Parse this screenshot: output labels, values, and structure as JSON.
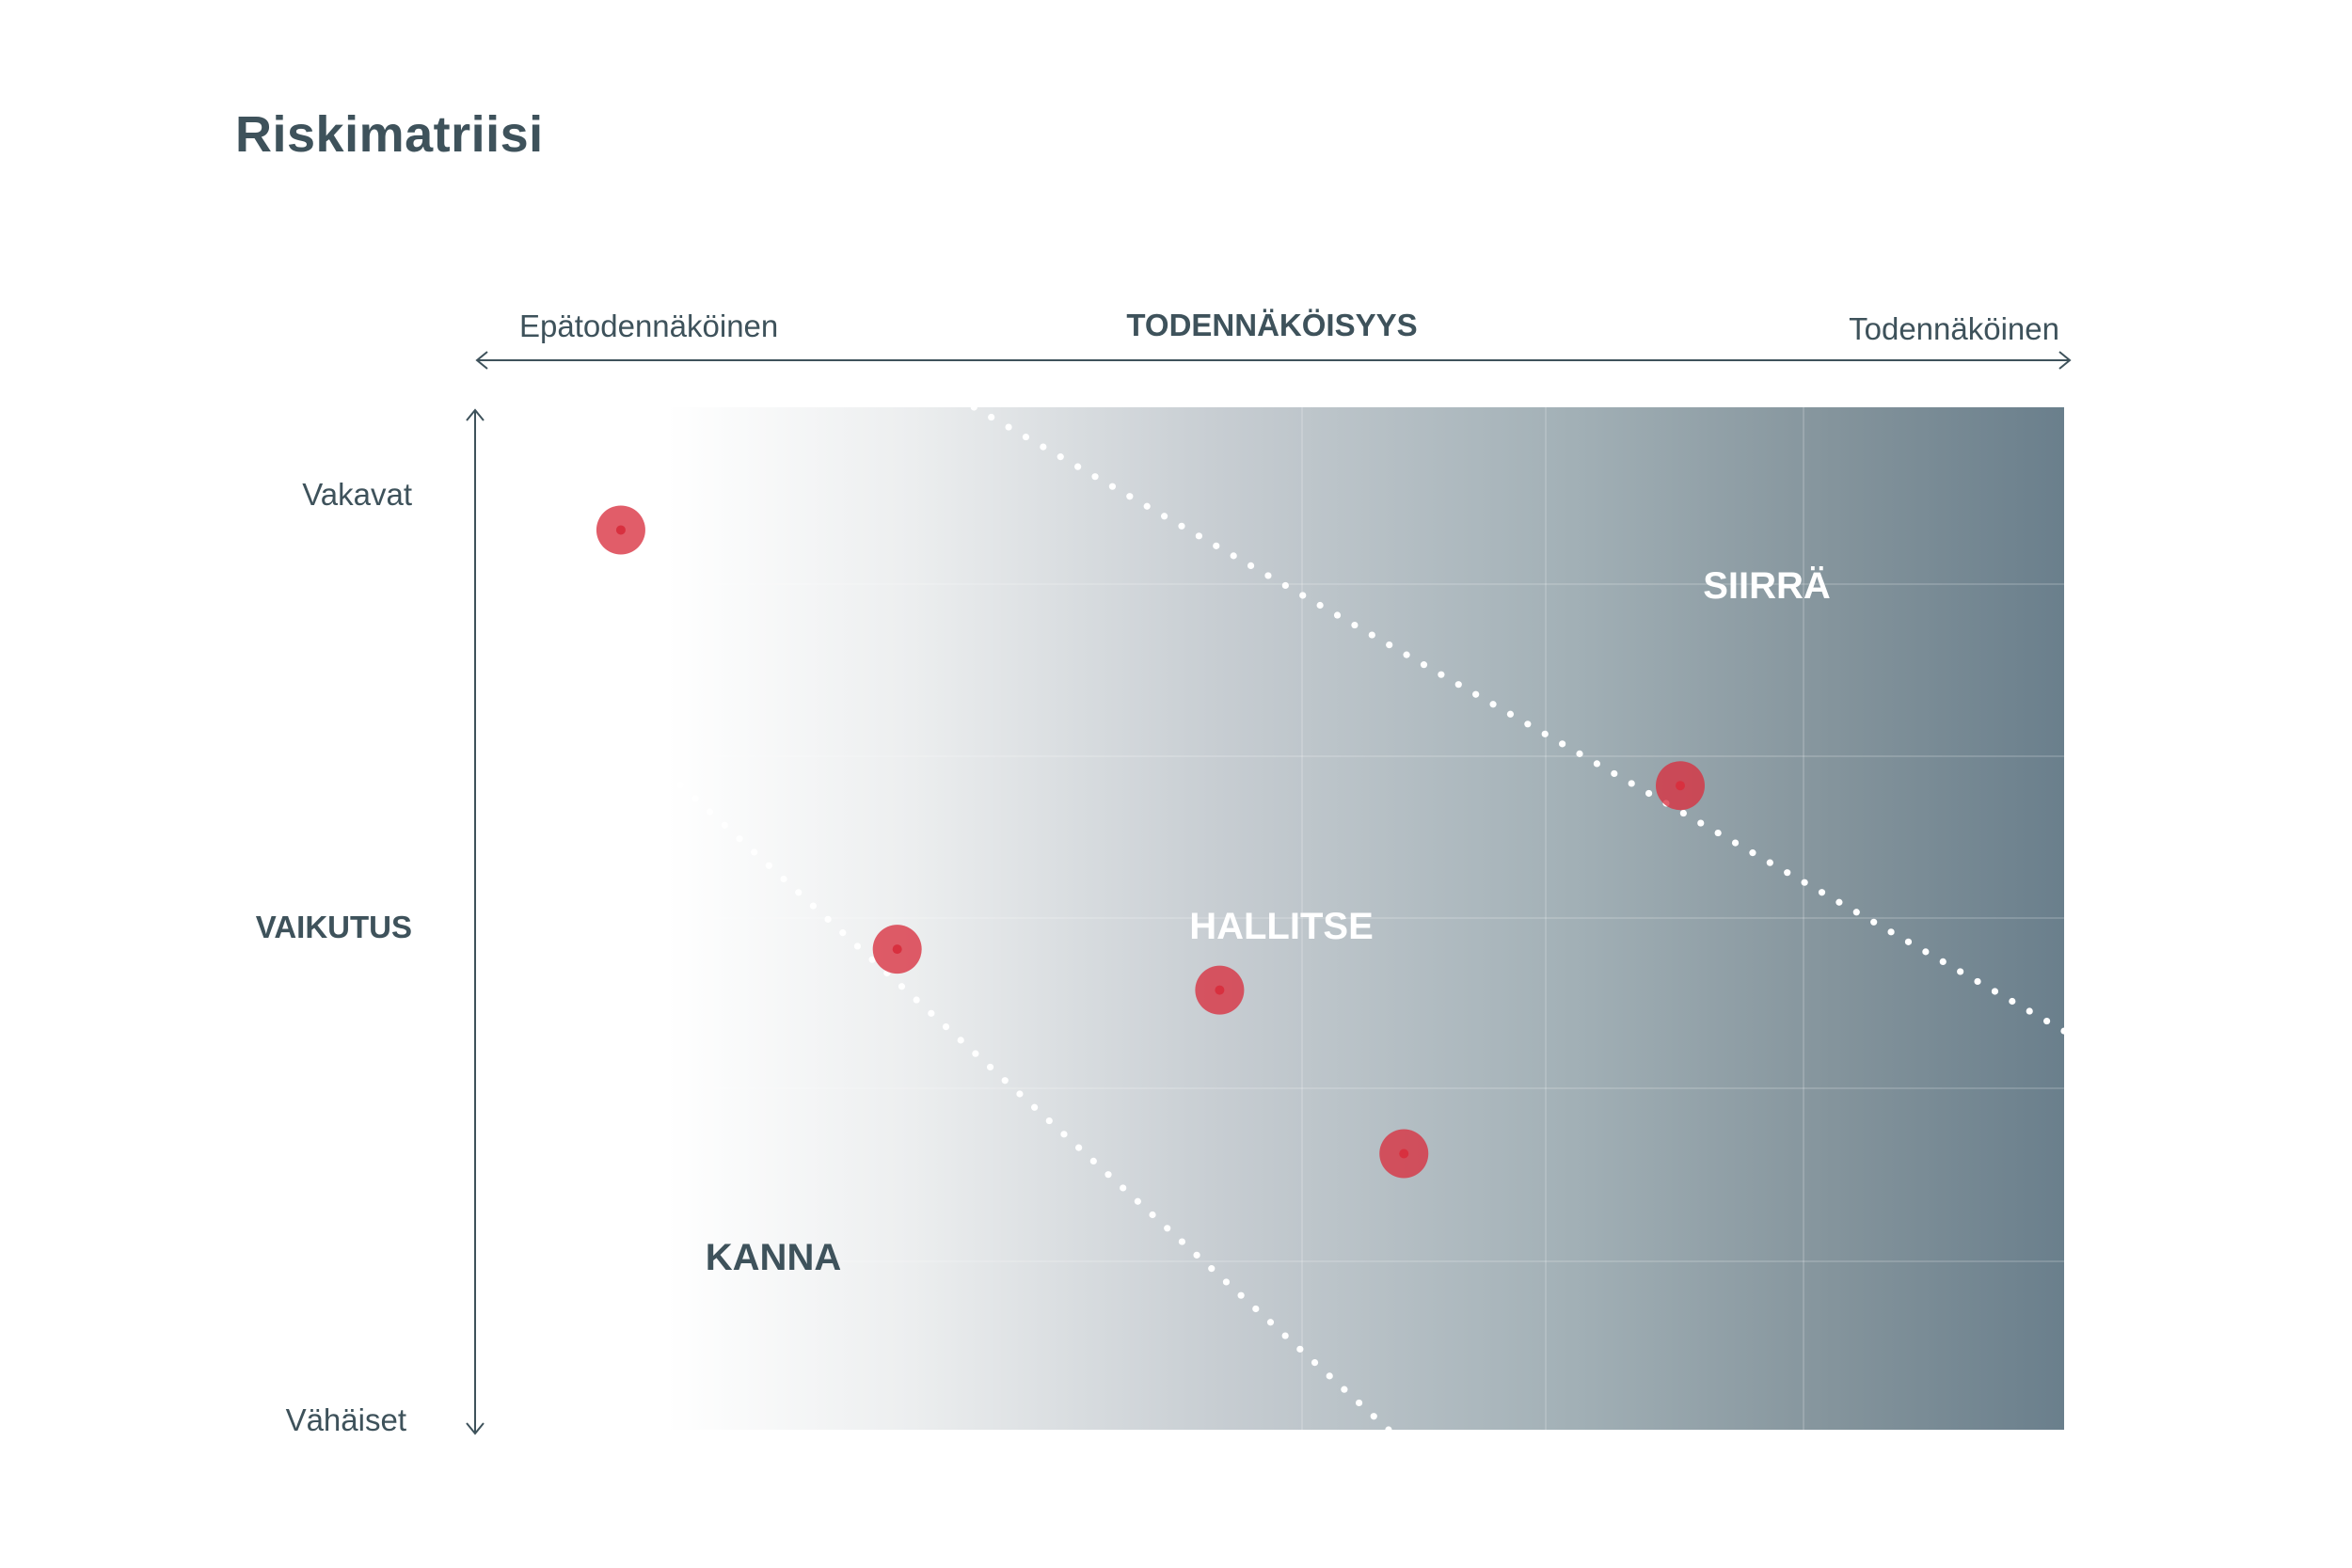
{
  "title": "Riskimatriisi",
  "x_axis": {
    "title": "TODENNÄKÖISYYS",
    "min_label": "Epätodennäköinen",
    "max_label": "Todennäköinen"
  },
  "y_axis": {
    "title": "VAIKUTUS",
    "max_label": "Vakavat",
    "min_label": "Vähäiset"
  },
  "zones": [
    {
      "name": "KANNA",
      "color": "#3e525b"
    },
    {
      "name": "HALLITSE",
      "color": "#ffffff"
    },
    {
      "name": "SIIRRÄ",
      "color": "#ffffff"
    }
  ],
  "colors": {
    "gradient_start": "#ffffff",
    "gradient_mid": "#c9cfd3",
    "gradient_end": "#6a7f8c",
    "marker": "#d8303f",
    "axis": "#3e525b",
    "divider": "#ffffff"
  },
  "risk_points": [
    {
      "likelihood": 0.06,
      "impact": 0.88
    },
    {
      "likelihood": 0.24,
      "impact": 0.47
    },
    {
      "likelihood": 0.45,
      "impact": 0.43
    },
    {
      "likelihood": 0.57,
      "impact": 0.27
    },
    {
      "likelihood": 0.75,
      "impact": 0.63
    }
  ],
  "dividers": [
    {
      "from": [
        0.29,
        1.0
      ],
      "to": [
        1.0,
        0.39
      ]
    },
    {
      "from": [
        0.07,
        0.67
      ],
      "to": [
        0.56,
        0.0
      ]
    }
  ]
}
